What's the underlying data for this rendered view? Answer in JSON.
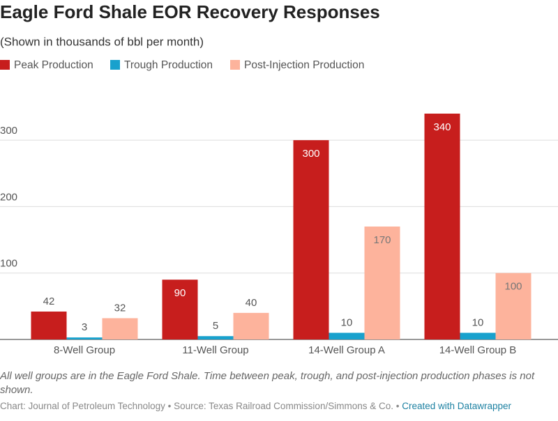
{
  "chart_data": {
    "type": "bar",
    "title": "Eagle Ford Shale EOR Recovery Responses",
    "subtitle": "(Shown in thousands of bbl per month)",
    "categories": [
      "8-Well Group",
      "11-Well Group",
      "14-Well Group A",
      "14-Well Group B"
    ],
    "series": [
      {
        "name": "Peak Production",
        "color": "#c71e1d",
        "values": [
          42,
          90,
          300,
          340
        ]
      },
      {
        "name": "Trough Production",
        "color": "#18a1cd",
        "values": [
          3,
          5,
          10,
          10
        ]
      },
      {
        "name": "Post-Injection Production",
        "color": "#fdb39c",
        "values": [
          32,
          40,
          170,
          100
        ]
      }
    ],
    "ylim": [
      0,
      340
    ],
    "yticks": [
      100,
      200,
      300
    ],
    "grid": true,
    "notes": "All well groups are in the Eagle Ford Shale. Time between peak, trough, and post-injection production phases is not shown.",
    "source": "Chart: Journal of Petroleum Technology • Source: Texas Railroad Commission/Simmons & Co. •",
    "credit": "Created with Datawrapper"
  }
}
